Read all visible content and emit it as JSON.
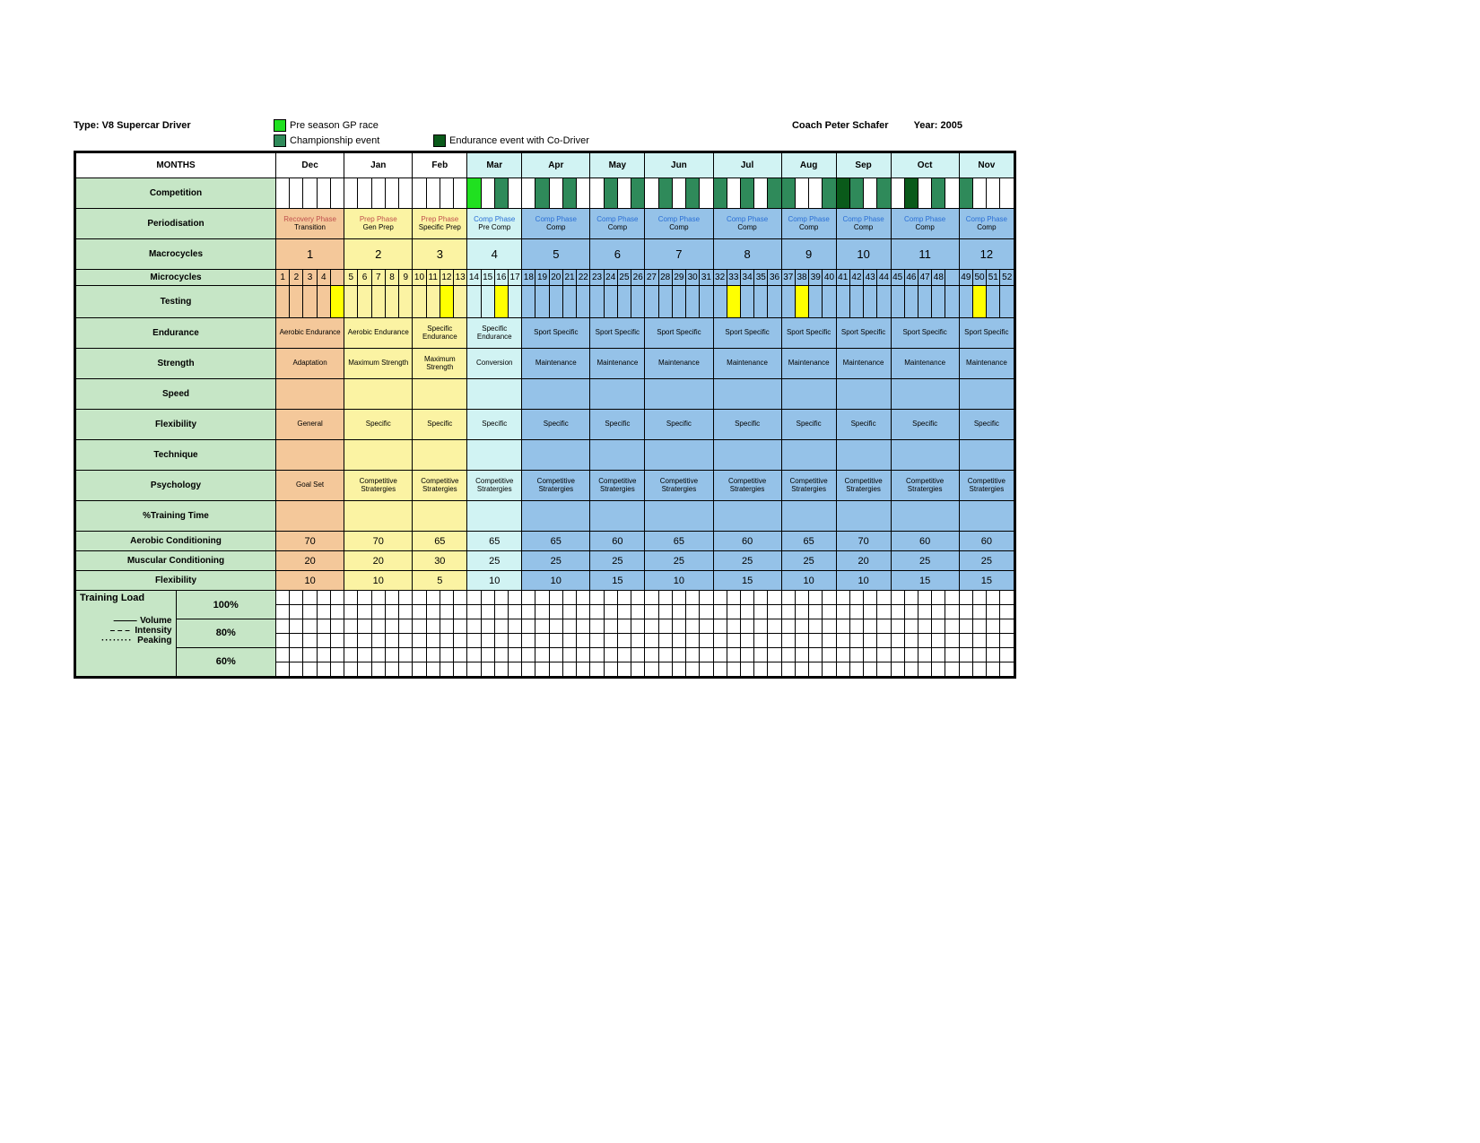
{
  "header": {
    "type_label": "Type: V8 Supercar Driver",
    "coach_label": "Coach Peter Schafer",
    "year_label": "Year: 2005",
    "legend": {
      "pre_season": "Pre season GP race",
      "championship": "Championship event",
      "endurance": "Endurance event with Co-Driver"
    }
  },
  "colors": {
    "label_bg": "#c6e6c6",
    "phase_orange": "#f4c89a",
    "phase_yellow": "#fbf3a3",
    "phase_cyan": "#d1f3f3",
    "phase_blue": "#95c2e8",
    "champ_green": "#2f8a5a",
    "pre_green": "#20e020",
    "endurance_green": "#0a5a1a",
    "test_yellow": "#ffff00"
  },
  "months_row_label": "MONTHS",
  "months": [
    "Dec",
    "Jan",
    "Feb",
    "Mar",
    "Apr",
    "May",
    "Jun",
    "Jul",
    "Aug",
    "Sep",
    "Oct",
    "Nov"
  ],
  "month_weeks": [
    5,
    5,
    4,
    4,
    5,
    4,
    5,
    5,
    4,
    4,
    5,
    4
  ],
  "phase_colors": [
    "p-orange",
    "p-yellow",
    "p-yellow",
    "p-cyan",
    "p-blue",
    "p-blue",
    "p-blue",
    "p-blue",
    "p-blue",
    "p-blue",
    "p-blue",
    "p-blue"
  ],
  "microcycle_labels": [
    "1",
    "2",
    "3",
    "4",
    "",
    "5",
    "6",
    "7",
    "8",
    "9",
    "10",
    "11",
    "12",
    "13",
    "14",
    "15",
    "16",
    "17",
    "18",
    "19",
    "20",
    "21",
    "22",
    "23",
    "24",
    "25",
    "26",
    "27",
    "28",
    "29",
    "30",
    "31",
    "32",
    "33",
    "34",
    "35",
    "36",
    "37",
    "38",
    "39",
    "40",
    "41",
    "42",
    "43",
    "44",
    "45",
    "46",
    "47",
    "48",
    "",
    "49",
    "50",
    "51",
    "52"
  ],
  "competition": {
    "label": "Competition",
    "events_per_week": [
      "",
      "",
      "",
      "",
      "",
      "",
      "",
      "",
      "",
      "",
      "",
      "",
      "",
      "",
      "p",
      "",
      "c",
      "",
      "",
      "c",
      "",
      "c",
      "",
      "",
      "c",
      "",
      "c",
      "",
      "c",
      "",
      "c",
      "",
      "c",
      "",
      "c",
      "",
      "c",
      "c",
      "",
      "",
      "c",
      "e",
      "c",
      "",
      "c",
      "",
      "e",
      "",
      "c",
      "",
      "c",
      "",
      "",
      ""
    ]
  },
  "testing": {
    "label": "Testing",
    "weeks": [
      5,
      13,
      17,
      34,
      39,
      52
    ]
  },
  "row_labels": {
    "periodisation": "Periodisation",
    "macrocycles": "Macrocycles",
    "microcycles": "Microcycles",
    "endurance": "Endurance",
    "strength": "Strength",
    "speed": "Speed",
    "flexibility": "Flexibility",
    "technique": "Technique",
    "psychology": "Psychology",
    "training_time": "%Training Time",
    "aerobic_cond": "Aerobic Conditioning",
    "muscular_cond": "Muscular Conditioning",
    "flex2": "Flexibility",
    "training_load": "Training Load",
    "volume": "Volume",
    "intensity": "Intensity",
    "peaking": "Peaking"
  },
  "periodisation": [
    {
      "top": "Recovery Phase",
      "bottom": "Transition"
    },
    {
      "top": "Prep Phase",
      "bottom": "Gen  Prep"
    },
    {
      "top": "Prep Phase",
      "bottom": "Specific Prep"
    },
    {
      "top": "Comp Phase",
      "bottom": "Pre Comp"
    },
    {
      "top": "Comp Phase",
      "bottom": "Comp"
    },
    {
      "top": "Comp Phase",
      "bottom": "Comp"
    },
    {
      "top": "Comp Phase",
      "bottom": "Comp"
    },
    {
      "top": "Comp Phase",
      "bottom": "Comp"
    },
    {
      "top": "Comp Phase",
      "bottom": "Comp"
    },
    {
      "top": "Comp Phase",
      "bottom": "Comp"
    },
    {
      "top": "Comp Phase",
      "bottom": "Comp"
    },
    {
      "top": "Comp Phase",
      "bottom": "Comp"
    }
  ],
  "macrocycles": [
    "1",
    "2",
    "3",
    "4",
    "5",
    "6",
    "7",
    "8",
    "9",
    "10",
    "11",
    "12"
  ],
  "endurance": [
    "Aerobic Endurance",
    "Aerobic Endurance",
    "Specific Endurance",
    "Specific Endurance",
    "Sport Specific",
    "Sport Specific",
    "Sport Specific",
    "Sport Specific",
    "Sport Specific",
    "Sport Specific",
    "Sport Specific",
    "Sport Specific"
  ],
  "strength": [
    "Adaptation",
    "Maximum Strength",
    "Maximum Strength",
    "Conversion",
    "Maintenance",
    "Maintenance",
    "Maintenance",
    "Maintenance",
    "Maintenance",
    "Maintenance",
    "Maintenance",
    "Maintenance"
  ],
  "speed": [
    "",
    "",
    "",
    "",
    "",
    "",
    "",
    "",
    "",
    "",
    "",
    ""
  ],
  "flexibility": [
    "General",
    "Specific",
    "Specific",
    "Specific",
    "Specific",
    "Specific",
    "Specific",
    "Specific",
    "Specific",
    "Specific",
    "Specific",
    "Specific"
  ],
  "technique": [
    "",
    "",
    "",
    "",
    "",
    "",
    "",
    "",
    "",
    "",
    "",
    ""
  ],
  "psychology": [
    "Goal Set",
    "Competitive Stratergies",
    "Competitive Stratergies",
    "Competitive Stratergies",
    "Competitive Stratergies",
    "Competitive Stratergies",
    "Competitive Stratergies",
    "Competitive Stratergies",
    "Competitive Stratergies",
    "Competitive Stratergies",
    "Competitive Stratergies",
    "Competitive Stratergies"
  ],
  "aerobic_cond": [
    "70",
    "70",
    "65",
    "65",
    "65",
    "60",
    "65",
    "60",
    "65",
    "70",
    "60",
    "60"
  ],
  "muscular_cond": [
    "20",
    "20",
    "30",
    "25",
    "25",
    "25",
    "25",
    "25",
    "25",
    "20",
    "25",
    "25"
  ],
  "flex2": [
    "10",
    "10",
    "5",
    "10",
    "10",
    "15",
    "10",
    "15",
    "10",
    "10",
    "15",
    "15"
  ],
  "load_levels": [
    "100%",
    "80%",
    "60%"
  ]
}
